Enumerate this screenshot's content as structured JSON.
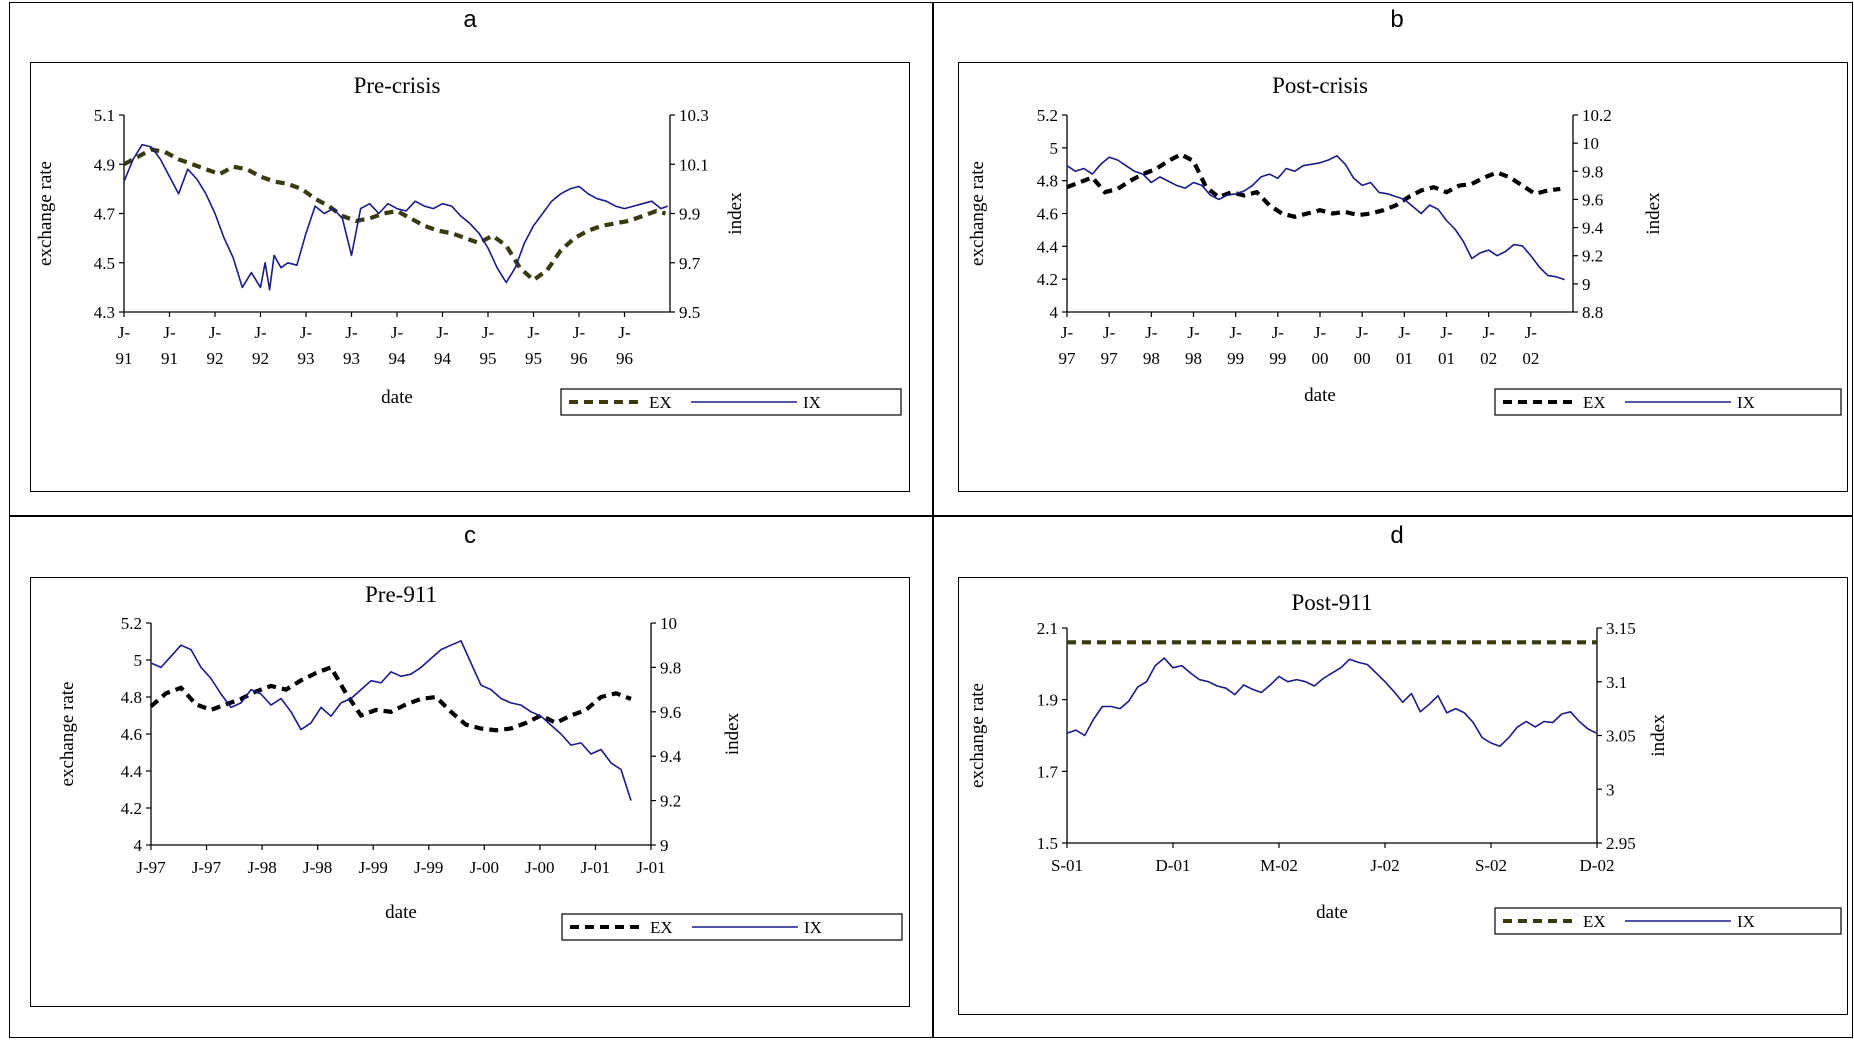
{
  "panel_labels": [
    "a",
    "b",
    "c",
    "d"
  ],
  "colors": {
    "ex_dark": "#3a3a10",
    "ex_black": "#000000",
    "ix": "#1a1a8c"
  },
  "chart_data": [
    {
      "panel": "a",
      "type": "line",
      "title": "Pre-crisis",
      "xlabel": "date",
      "ylabel": "exchange rate",
      "y2label": "index",
      "x_tick_labels": [
        [
          "J-",
          "91"
        ],
        [
          "J-",
          "91"
        ],
        [
          "J-",
          "92"
        ],
        [
          "J-",
          "92"
        ],
        [
          "J-",
          "93"
        ],
        [
          "J-",
          "93"
        ],
        [
          "J-",
          "94"
        ],
        [
          "J-",
          "94"
        ],
        [
          "J-",
          "95"
        ],
        [
          "J-",
          "95"
        ],
        [
          "J-",
          "96"
        ],
        [
          "J-",
          "96"
        ]
      ],
      "yticks": [
        "5.1",
        "4.9",
        "4.7",
        "4.5",
        "4.3"
      ],
      "ylim": [
        4.3,
        5.1
      ],
      "y2ticks": [
        "10.3",
        "10.1",
        "9.9",
        "9.7",
        "9.5"
      ],
      "y2lim": [
        9.5,
        10.3
      ],
      "legend": [
        "EX",
        "IX"
      ],
      "legend_position": "bottom-right",
      "ex_color": "#3a3a10",
      "series": [
        {
          "name": "EX",
          "axis": "left",
          "style": "dashed",
          "x": [
            0,
            0.3,
            0.6,
            0.9,
            1.2,
            1.5,
            1.8,
            2.1,
            2.4,
            2.7,
            3.0,
            3.3,
            3.6,
            3.9,
            4.2,
            4.5,
            4.8,
            5.1,
            5.4,
            5.7,
            6.0,
            6.3,
            6.6,
            6.9,
            7.2,
            7.5,
            7.8,
            8.1,
            8.4,
            8.7,
            9.0,
            9.3,
            9.6,
            9.9,
            10.2,
            10.5,
            10.8,
            11.1,
            11.4,
            11.7,
            11.9
          ],
          "y": [
            4.9,
            4.93,
            4.96,
            4.95,
            4.92,
            4.9,
            4.88,
            4.86,
            4.89,
            4.88,
            4.85,
            4.83,
            4.82,
            4.8,
            4.76,
            4.73,
            4.69,
            4.67,
            4.68,
            4.7,
            4.71,
            4.68,
            4.65,
            4.63,
            4.62,
            4.6,
            4.58,
            4.61,
            4.57,
            4.48,
            4.43,
            4.47,
            4.55,
            4.6,
            4.63,
            4.65,
            4.66,
            4.67,
            4.69,
            4.71,
            4.7
          ]
        },
        {
          "name": "IX",
          "axis": "right",
          "style": "solid",
          "x": [
            0,
            0.2,
            0.4,
            0.6,
            0.8,
            1.0,
            1.2,
            1.4,
            1.6,
            1.8,
            2.0,
            2.2,
            2.4,
            2.6,
            2.8,
            3.0,
            3.1,
            3.2,
            3.3,
            3.45,
            3.6,
            3.8,
            4.0,
            4.2,
            4.4,
            4.6,
            4.8,
            5.0,
            5.2,
            5.4,
            5.6,
            5.8,
            6.0,
            6.2,
            6.4,
            6.6,
            6.8,
            7.0,
            7.2,
            7.4,
            7.6,
            7.8,
            8.0,
            8.2,
            8.4,
            8.6,
            8.8,
            9.0,
            9.2,
            9.4,
            9.6,
            9.8,
            10.0,
            10.2,
            10.4,
            10.6,
            10.8,
            11.0,
            11.2,
            11.4,
            11.6,
            11.8,
            11.95
          ],
          "y": [
            10.03,
            10.12,
            10.18,
            10.17,
            10.12,
            10.05,
            9.98,
            10.08,
            10.04,
            9.98,
            9.9,
            9.8,
            9.72,
            9.6,
            9.66,
            9.6,
            9.7,
            9.59,
            9.73,
            9.68,
            9.7,
            9.69,
            9.82,
            9.93,
            9.9,
            9.92,
            9.88,
            9.73,
            9.92,
            9.94,
            9.9,
            9.94,
            9.92,
            9.91,
            9.95,
            9.93,
            9.92,
            9.94,
            9.93,
            9.89,
            9.86,
            9.82,
            9.76,
            9.68,
            9.62,
            9.68,
            9.78,
            9.85,
            9.9,
            9.95,
            9.98,
            10.0,
            10.01,
            9.98,
            9.96,
            9.95,
            9.93,
            9.92,
            9.93,
            9.94,
            9.95,
            9.92,
            9.93
          ]
        }
      ]
    },
    {
      "panel": "b",
      "type": "line",
      "title": "Post-crisis",
      "xlabel": "date",
      "ylabel": "exchange rate",
      "y2label": "index",
      "x_tick_labels": [
        [
          "J-",
          "97"
        ],
        [
          "J-",
          "97"
        ],
        [
          "J-",
          "98"
        ],
        [
          "J-",
          "98"
        ],
        [
          "J-",
          "99"
        ],
        [
          "J-",
          "99"
        ],
        [
          "J-",
          "00"
        ],
        [
          "J-",
          "00"
        ],
        [
          "J-",
          "01"
        ],
        [
          "J-",
          "01"
        ],
        [
          "J-",
          "02"
        ],
        [
          "J-",
          "02"
        ]
      ],
      "yticks": [
        "5.2",
        "5",
        "4.8",
        "4.6",
        "4.4",
        "4.2",
        "4"
      ],
      "ylim": [
        4.0,
        5.2
      ],
      "y2ticks": [
        "10.2",
        "10",
        "9.8",
        "9.6",
        "9.4",
        "9.2",
        "9",
        "8.8"
      ],
      "y2lim": [
        8.8,
        10.2
      ],
      "legend": [
        "EX",
        "IX"
      ],
      "legend_position": "bottom-right",
      "ex_color": "#000000",
      "series": [
        {
          "name": "EX",
          "axis": "left",
          "style": "dashed",
          "x": [
            0,
            0.3,
            0.6,
            0.9,
            1.2,
            1.5,
            1.8,
            2.1,
            2.4,
            2.7,
            3.0,
            3.3,
            3.6,
            3.9,
            4.2,
            4.5,
            4.8,
            5.1,
            5.4,
            5.7,
            6.0,
            6.3,
            6.6,
            6.9,
            7.2,
            7.5,
            7.8,
            8.1,
            8.4,
            8.7,
            9.0,
            9.3,
            9.6,
            9.9,
            10.2,
            10.5,
            10.8,
            11.1,
            11.4,
            11.7
          ],
          "y": [
            4.76,
            4.79,
            4.82,
            4.73,
            4.75,
            4.8,
            4.84,
            4.87,
            4.92,
            4.96,
            4.92,
            4.76,
            4.7,
            4.73,
            4.71,
            4.73,
            4.65,
            4.6,
            4.58,
            4.6,
            4.62,
            4.6,
            4.61,
            4.59,
            4.6,
            4.62,
            4.65,
            4.7,
            4.74,
            4.76,
            4.73,
            4.77,
            4.78,
            4.82,
            4.85,
            4.82,
            4.77,
            4.72,
            4.74,
            4.75
          ]
        },
        {
          "name": "IX",
          "axis": "right",
          "style": "solid",
          "x": [
            0,
            0.2,
            0.4,
            0.6,
            0.8,
            1.0,
            1.2,
            1.4,
            1.6,
            1.8,
            2.0,
            2.2,
            2.4,
            2.6,
            2.8,
            3.0,
            3.2,
            3.4,
            3.6,
            3.8,
            4.0,
            4.2,
            4.4,
            4.6,
            4.8,
            5.0,
            5.2,
            5.4,
            5.6,
            5.8,
            6.0,
            6.2,
            6.4,
            6.6,
            6.8,
            7.0,
            7.2,
            7.4,
            7.6,
            7.8,
            8.0,
            8.2,
            8.4,
            8.6,
            8.8,
            9.0,
            9.2,
            9.4,
            9.6,
            9.8,
            10.0,
            10.2,
            10.4,
            10.6,
            10.8,
            11.0,
            11.2,
            11.4,
            11.6,
            11.8
          ],
          "y": [
            9.84,
            9.8,
            9.82,
            9.78,
            9.85,
            9.9,
            9.88,
            9.84,
            9.8,
            9.78,
            9.72,
            9.76,
            9.73,
            9.7,
            9.68,
            9.72,
            9.7,
            9.63,
            9.6,
            9.63,
            9.64,
            9.66,
            9.7,
            9.76,
            9.78,
            9.75,
            9.82,
            9.8,
            9.84,
            9.85,
            9.86,
            9.88,
            9.91,
            9.85,
            9.75,
            9.7,
            9.72,
            9.65,
            9.64,
            9.62,
            9.6,
            9.55,
            9.5,
            9.56,
            9.53,
            9.45,
            9.39,
            9.3,
            9.18,
            9.22,
            9.24,
            9.2,
            9.23,
            9.28,
            9.27,
            9.2,
            9.12,
            9.06,
            9.05,
            9.03
          ]
        }
      ]
    },
    {
      "panel": "c",
      "type": "line",
      "title": "Pre-911",
      "xlabel": "date",
      "ylabel": "exchange rate",
      "y2label": "index",
      "x_tick_labels": [
        "J-97",
        "J-97",
        "J-98",
        "J-98",
        "J-99",
        "J-99",
        "J-00",
        "J-00",
        "J-01",
        "J-01"
      ],
      "yticks": [
        "5.2",
        "5",
        "4.8",
        "4.6",
        "4.4",
        "4.2",
        "4"
      ],
      "ylim": [
        4.0,
        5.2
      ],
      "y2ticks": [
        "10",
        "9.8",
        "9.6",
        "9.4",
        "9.2",
        "9"
      ],
      "y2lim": [
        9.0,
        10.0
      ],
      "legend": [
        "EX",
        "IX"
      ],
      "legend_position": "bottom-right",
      "ex_color": "#000000",
      "series": [
        {
          "name": "EX",
          "axis": "left",
          "style": "dashed",
          "x": [
            0,
            0.3,
            0.6,
            0.9,
            1.2,
            1.5,
            1.8,
            2.1,
            2.4,
            2.7,
            3.0,
            3.3,
            3.6,
            3.9,
            4.2,
            4.5,
            4.8,
            5.1,
            5.4,
            5.7,
            6.0,
            6.3,
            6.6,
            6.9,
            7.2,
            7.5,
            7.8,
            8.1,
            8.4,
            8.7,
            9.0,
            9.3,
            9.6
          ],
          "y": [
            4.75,
            4.82,
            4.85,
            4.76,
            4.73,
            4.76,
            4.79,
            4.83,
            4.86,
            4.84,
            4.89,
            4.93,
            4.96,
            4.82,
            4.7,
            4.73,
            4.72,
            4.76,
            4.79,
            4.8,
            4.72,
            4.65,
            4.63,
            4.62,
            4.63,
            4.66,
            4.7,
            4.66,
            4.7,
            4.73,
            4.8,
            4.82,
            4.79
          ]
        },
        {
          "name": "IX",
          "axis": "right",
          "style": "solid",
          "x": [
            0,
            0.2,
            0.4,
            0.6,
            0.8,
            1.0,
            1.2,
            1.4,
            1.6,
            1.8,
            2.0,
            2.2,
            2.4,
            2.6,
            2.8,
            3.0,
            3.2,
            3.4,
            3.6,
            3.8,
            4.0,
            4.2,
            4.4,
            4.6,
            4.8,
            5.0,
            5.2,
            5.4,
            5.6,
            5.8,
            6.0,
            6.2,
            6.4,
            6.6,
            6.8,
            7.0,
            7.2,
            7.4,
            7.6,
            7.8,
            8.0,
            8.2,
            8.4,
            8.6,
            8.8,
            9.0,
            9.2,
            9.4,
            9.6
          ],
          "y": [
            9.82,
            9.8,
            9.85,
            9.9,
            9.88,
            9.8,
            9.75,
            9.68,
            9.62,
            9.64,
            9.7,
            9.68,
            9.63,
            9.66,
            9.6,
            9.52,
            9.55,
            9.62,
            9.58,
            9.64,
            9.66,
            9.7,
            9.74,
            9.73,
            9.78,
            9.76,
            9.77,
            9.8,
            9.84,
            9.88,
            9.9,
            9.92,
            9.82,
            9.72,
            9.7,
            9.66,
            9.64,
            9.63,
            9.6,
            9.58,
            9.54,
            9.5,
            9.45,
            9.46,
            9.41,
            9.43,
            9.37,
            9.34,
            9.2
          ]
        }
      ]
    },
    {
      "panel": "d",
      "type": "line",
      "title": "Post-911",
      "xlabel": "date",
      "ylabel": "exchange rate",
      "y2label": "index",
      "x_tick_labels": [
        "S-01",
        "D-01",
        "M-02",
        "J-02",
        "S-02",
        "D-02"
      ],
      "yticks": [
        "2.1",
        "1.9",
        "1.7",
        "1.5"
      ],
      "ylim": [
        1.5,
        2.1
      ],
      "y2ticks": [
        "3.15",
        "3.1",
        "3.05",
        "3",
        "2.95"
      ],
      "y2lim": [
        2.95,
        3.15
      ],
      "legend": [
        "EX",
        "IX"
      ],
      "legend_position": "bottom-right",
      "ex_color": "#3a3a10",
      "series": [
        {
          "name": "EX",
          "axis": "left",
          "style": "dashed",
          "x": [
            0,
            15
          ],
          "y": [
            2.06,
            2.06
          ]
        },
        {
          "name": "IX",
          "axis": "right",
          "style": "solid",
          "x": [
            0,
            0.25,
            0.5,
            0.75,
            1.0,
            1.25,
            1.5,
            1.75,
            2.0,
            2.25,
            2.5,
            2.75,
            3.0,
            3.25,
            3.5,
            3.75,
            4.0,
            4.25,
            4.5,
            4.75,
            5.0,
            5.25,
            5.5,
            5.75,
            6.0,
            6.25,
            6.5,
            6.75,
            7.0,
            7.25,
            7.5,
            7.75,
            8.0,
            8.25,
            8.5,
            8.75,
            9.0,
            9.25,
            9.5,
            9.75,
            10.0,
            10.25,
            10.5,
            10.75,
            11.0,
            11.25,
            11.5,
            11.75,
            12.0,
            12.25,
            12.5,
            12.75,
            13.0,
            13.25,
            13.5,
            13.75,
            14.0,
            14.25,
            14.5,
            14.75,
            15.0
          ],
          "y": [
            3.052,
            3.055,
            3.05,
            3.065,
            3.077,
            3.077,
            3.075,
            3.082,
            3.095,
            3.1,
            3.115,
            3.122,
            3.113,
            3.115,
            3.108,
            3.102,
            3.1,
            3.096,
            3.094,
            3.088,
            3.097,
            3.093,
            3.09,
            3.097,
            3.105,
            3.1,
            3.102,
            3.1,
            3.096,
            3.103,
            3.108,
            3.113,
            3.121,
            3.118,
            3.116,
            3.108,
            3.1,
            3.091,
            3.081,
            3.089,
            3.072,
            3.079,
            3.087,
            3.071,
            3.075,
            3.071,
            3.062,
            3.048,
            3.043,
            3.04,
            3.048,
            3.058,
            3.063,
            3.058,
            3.063,
            3.062,
            3.07,
            3.072,
            3.063,
            3.056,
            3.052
          ]
        }
      ]
    }
  ]
}
